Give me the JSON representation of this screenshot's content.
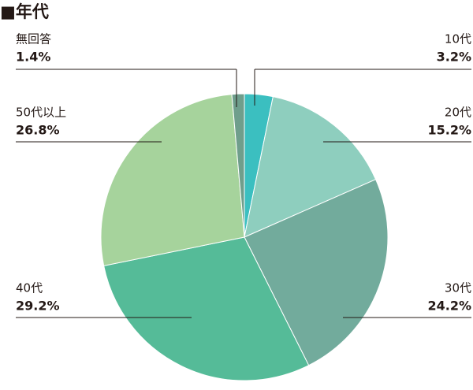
{
  "chart_data": {
    "type": "pie",
    "title": "■年代",
    "categories": [
      "10代",
      "20代",
      "30代",
      "40代",
      "50代以上",
      "無回答"
    ],
    "values": [
      3.2,
      15.2,
      24.2,
      29.2,
      26.8,
      1.4
    ],
    "value_labels": [
      "3.2%",
      "15.2%",
      "24.2%",
      "29.2%",
      "26.8%",
      "1.4%"
    ],
    "colors": [
      "#3bbfc0",
      "#8ecebe",
      "#72ab9c",
      "#55bb98",
      "#a6d39c",
      "#6f9e8c"
    ]
  }
}
